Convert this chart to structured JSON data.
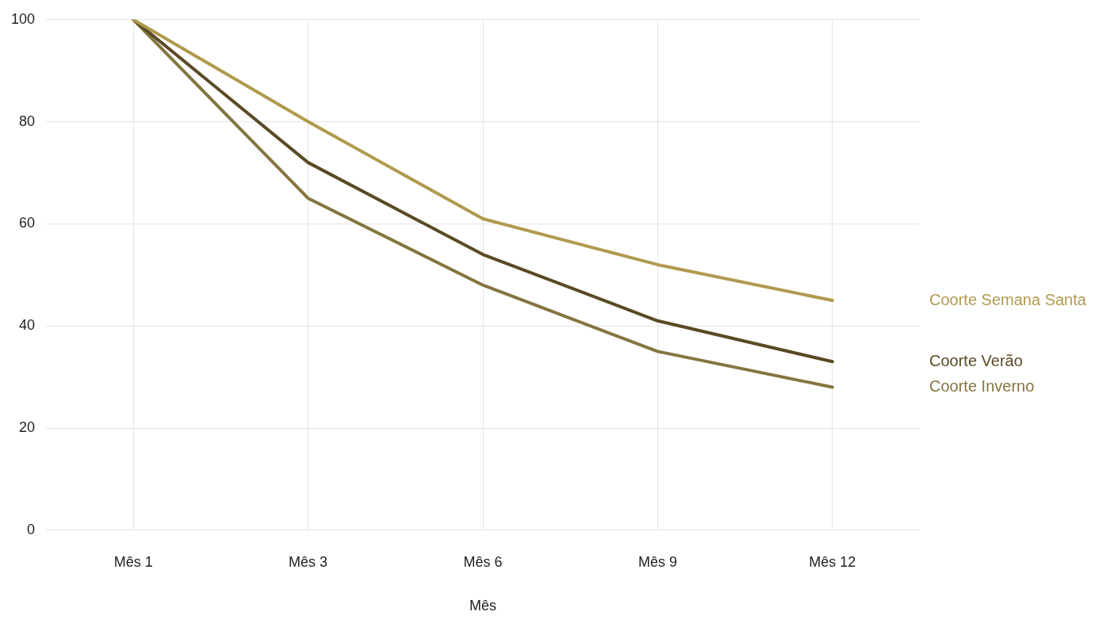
{
  "chart_data": {
    "type": "line",
    "xlabel": "Mês",
    "categories": [
      "Mês 1",
      "Mês 3",
      "Mês 6",
      "Mês 9",
      "Mês 12"
    ],
    "ylim": [
      0,
      100
    ],
    "yticks": [
      0,
      20,
      40,
      60,
      80,
      100
    ],
    "grid": true,
    "series": [
      {
        "name": "Coorte Semana Santa",
        "color": "#b09a4e",
        "values": [
          100,
          80,
          61,
          52,
          45
        ]
      },
      {
        "name": "Coorte Verão",
        "color": "#5a4a24",
        "values": [
          100,
          72,
          54,
          41,
          33
        ]
      },
      {
        "name": "Coorte Inverno",
        "color": "#857540",
        "values": [
          100,
          65,
          48,
          35,
          28
        ]
      }
    ]
  }
}
